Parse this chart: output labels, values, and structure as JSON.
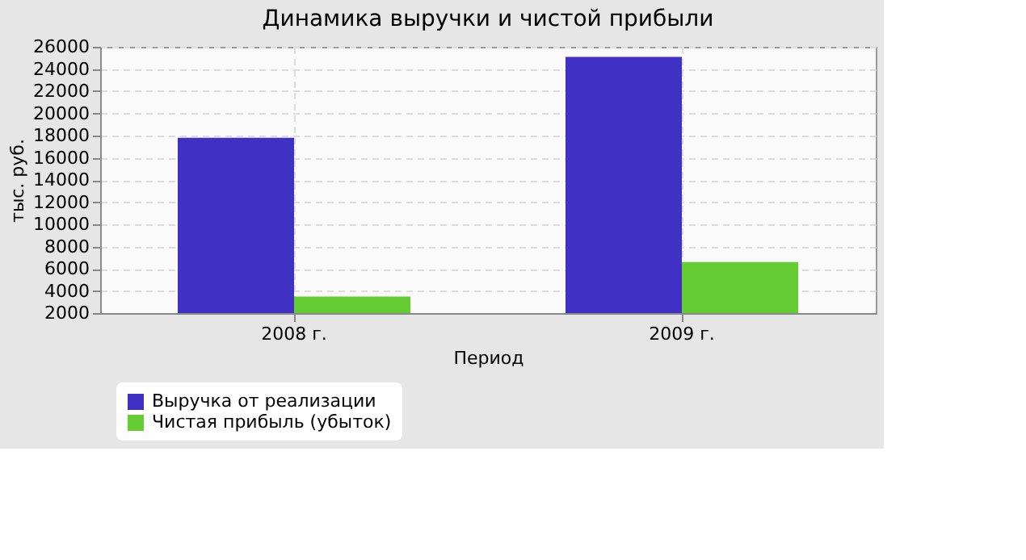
{
  "chart_data": {
    "type": "bar",
    "title": "Динамика выручки и чистой прибыли",
    "xlabel": "Период",
    "ylabel": "тыс. руб.",
    "categories": [
      "2008 г.",
      "2009 г."
    ],
    "series": [
      {
        "name": "Выручка от реализации",
        "color": "#4030c4",
        "values": [
          17800,
          25100
        ]
      },
      {
        "name": "Чистая прибыль (убыток)",
        "color": "#66cc33",
        "values": [
          3500,
          6600
        ]
      }
    ],
    "ylim": [
      2000,
      26000
    ],
    "yticks": [
      2000,
      4000,
      6000,
      8000,
      10000,
      12000,
      14000,
      16000,
      18000,
      20000,
      22000,
      24000,
      26000
    ],
    "grid": true,
    "legend": "bottom left"
  }
}
